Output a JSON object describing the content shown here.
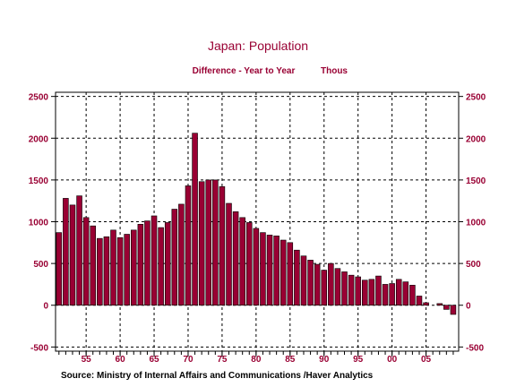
{
  "chart_data": {
    "type": "bar",
    "title": "Japan: Population",
    "subtitle": "Difference - Year to Year",
    "units": "Thous",
    "source": "Source:  Ministry of Internal Affairs and Communications /Haver Analytics",
    "x": [
      1951,
      1952,
      1953,
      1954,
      1955,
      1956,
      1957,
      1958,
      1959,
      1960,
      1961,
      1962,
      1963,
      1964,
      1965,
      1966,
      1967,
      1968,
      1969,
      1970,
      1971,
      1972,
      1973,
      1974,
      1975,
      1976,
      1977,
      1978,
      1979,
      1980,
      1981,
      1982,
      1983,
      1984,
      1985,
      1986,
      1987,
      1988,
      1989,
      1990,
      1991,
      1992,
      1993,
      1994,
      1995,
      1996,
      1997,
      1998,
      1999,
      2000,
      2001,
      2002,
      2003,
      2004,
      2005,
      2006,
      2007,
      2008,
      2009
    ],
    "values": [
      870,
      1280,
      1200,
      1310,
      1050,
      950,
      800,
      820,
      900,
      810,
      850,
      900,
      970,
      1010,
      1070,
      930,
      990,
      1150,
      1210,
      1430,
      2060,
      1480,
      1500,
      1500,
      1420,
      1220,
      1120,
      1050,
      990,
      920,
      870,
      840,
      830,
      780,
      750,
      660,
      590,
      540,
      490,
      420,
      500,
      440,
      400,
      360,
      340,
      300,
      310,
      350,
      250,
      260,
      310,
      280,
      240,
      110,
      30,
      0,
      20,
      -50,
      -110
    ],
    "xtick_labels": [
      "55",
      "60",
      "65",
      "70",
      "75",
      "80",
      "85",
      "90",
      "95",
      "00",
      "05"
    ],
    "xtick_years": [
      1955,
      1960,
      1965,
      1970,
      1975,
      1980,
      1985,
      1990,
      1995,
      2000,
      2005
    ],
    "ytick_labels": [
      "-500",
      "0",
      "500",
      "1000",
      "1500",
      "2000",
      "2500"
    ],
    "ytick_values": [
      -500,
      0,
      500,
      1000,
      1500,
      2000,
      2500
    ],
    "ylim": [
      -550,
      2550
    ],
    "xlim": [
      1950.5,
      2009.8
    ],
    "grid": true,
    "bar_color": "#990033",
    "text_color": "#990033"
  }
}
